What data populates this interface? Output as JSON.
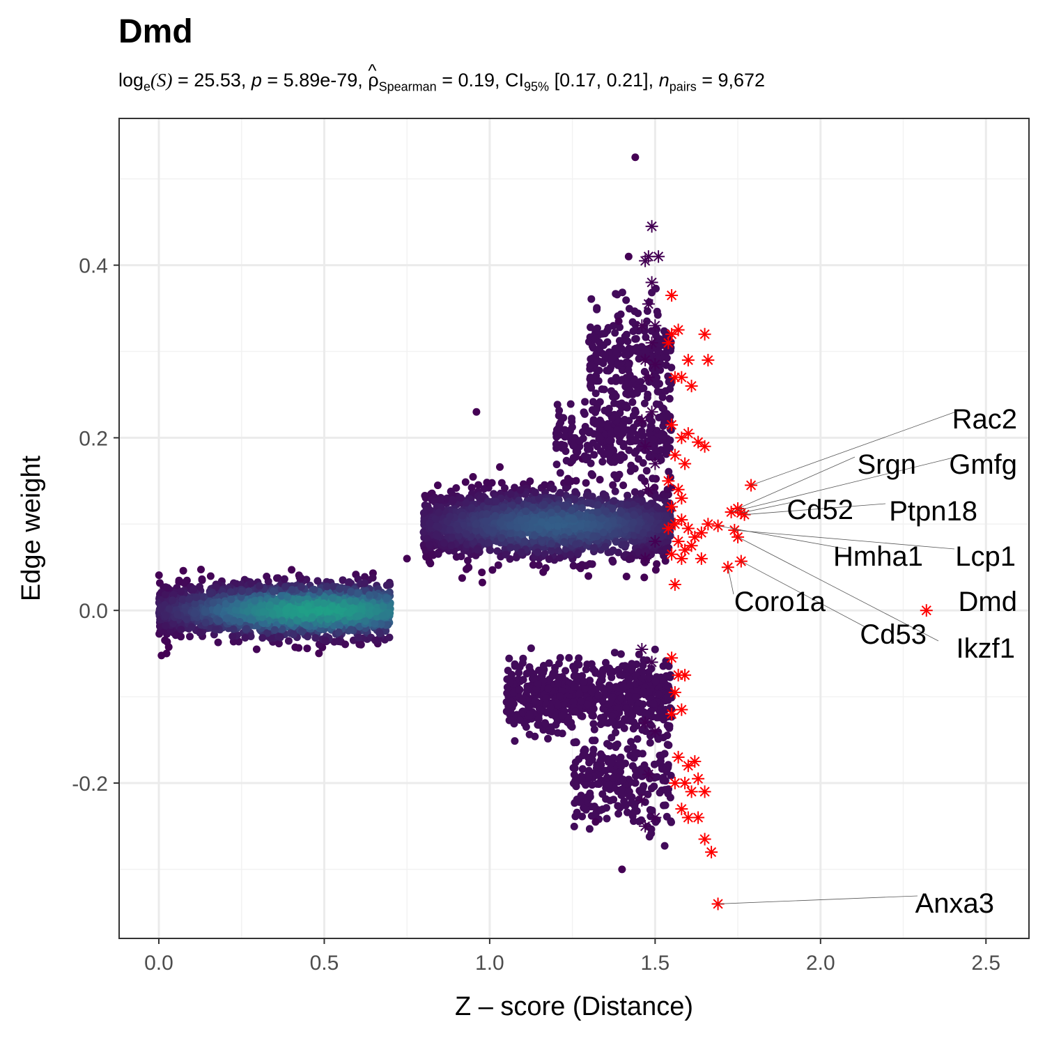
{
  "chart_data": {
    "type": "scatter",
    "title": "Dmd",
    "subtitle": {
      "log_prefix": "log",
      "log_sub": "e",
      "log_arg": "(S)",
      "log_value": " = 25.53, ",
      "p_label": "p",
      "p_value": " = 5.89e-79, ",
      "rho_label": "ρ",
      "rho_sub": "Spearman",
      "rho_value": " = 0.19, CI",
      "ci_sub": "95%",
      "ci_value": " [0.17, 0.21], ",
      "n_label": "n",
      "n_sub": "pairs",
      "n_value": " = 9,672"
    },
    "xlabel": "Z – score (Distance)",
    "ylabel": "Edge weight",
    "xlim": [
      -0.12,
      2.63
    ],
    "ylim": [
      -0.38,
      0.57
    ],
    "xticks": [
      0.0,
      0.5,
      1.0,
      1.5,
      2.0,
      2.5
    ],
    "xtick_labels": [
      "0.0",
      "0.5",
      "1.0",
      "1.5",
      "2.0",
      "2.5"
    ],
    "yticks": [
      -0.2,
      0.0,
      0.2,
      0.4
    ],
    "ytick_labels": [
      "-0.2",
      "0.0",
      "0.2",
      "0.4"
    ],
    "grid": true,
    "colors": {
      "density_low": "#440154",
      "density_mid": "#31688e",
      "density_high": "#1fa187",
      "highlight": "#ff0000",
      "label_line": "#555555"
    },
    "clusters": [
      {
        "name_hint": "band_zero",
        "x_range": [
          0.0,
          0.7
        ],
        "y_center": 0.0,
        "y_spread": 0.015,
        "density_peak_x": 0.48
      },
      {
        "name_hint": "band_pos_0.1",
        "x_range": [
          0.8,
          1.55
        ],
        "y_center": 0.1,
        "y_spread": 0.02,
        "density_peak_x": 1.2
      },
      {
        "name_hint": "band_pos_0.2",
        "x_range": [
          1.2,
          1.55
        ],
        "y_center": 0.2,
        "y_spread": 0.02
      },
      {
        "name_hint": "band_pos_0.3",
        "x_range": [
          1.3,
          1.55
        ],
        "y_center": 0.29,
        "y_spread": 0.03
      },
      {
        "name_hint": "band_neg_0.1",
        "x_range": [
          1.05,
          1.55
        ],
        "y_center": -0.1,
        "y_spread": 0.02
      },
      {
        "name_hint": "band_neg_0.2",
        "x_range": [
          1.25,
          1.55
        ],
        "y_center": -0.2,
        "y_spread": 0.025
      }
    ],
    "highlighted_genes": [
      {
        "label": "Rac2",
        "x": 1.79,
        "y": 0.145
      },
      {
        "label": "Srgn",
        "x": 1.75,
        "y": 0.118
      },
      {
        "label": "Gmfg",
        "x": 1.73,
        "y": 0.114
      },
      {
        "label": "Cd52",
        "x": 1.76,
        "y": 0.113
      },
      {
        "label": "Ptpn18",
        "x": 1.77,
        "y": 0.111
      },
      {
        "label": "Hmha1",
        "x": 1.69,
        "y": 0.098
      },
      {
        "label": "Lcp1",
        "x": 1.74,
        "y": 0.093
      },
      {
        "label": "Coro1a",
        "x": 1.72,
        "y": 0.05
      },
      {
        "label": "Cd53",
        "x": 1.76,
        "y": 0.057
      },
      {
        "label": "Dmd",
        "x": 2.32,
        "y": 0.0
      },
      {
        "label": "Ikzf1",
        "x": 1.75,
        "y": 0.085
      },
      {
        "label": "Anxa3",
        "x": 1.69,
        "y": -0.34
      }
    ]
  }
}
